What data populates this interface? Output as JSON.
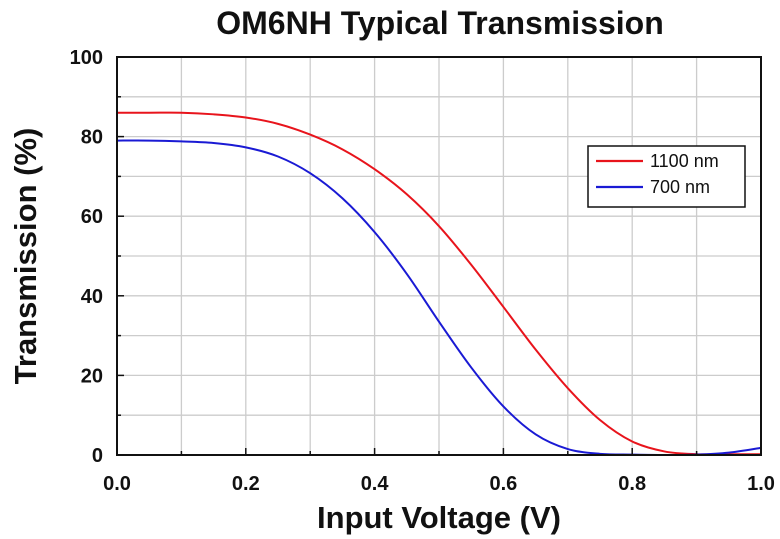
{
  "chart_data": {
    "type": "line",
    "title": "OM6NH Typical Transmission",
    "xlabel": "Input Voltage (V)",
    "ylabel": "Transmission (%)",
    "xlim": [
      0,
      1.0
    ],
    "ylim": [
      0,
      100
    ],
    "xticks": [
      "0.0",
      "0.2",
      "0.4",
      "0.6",
      "0.8",
      "1.0"
    ],
    "xtick_values": [
      0,
      0.2,
      0.4,
      0.6,
      0.8,
      1.0
    ],
    "yticks": [
      "0",
      "20",
      "40",
      "60",
      "80",
      "100"
    ],
    "ytick_values": [
      0,
      20,
      40,
      60,
      80,
      100
    ],
    "grid": true,
    "legend_position": "top-right",
    "series": [
      {
        "name": "1100 nm",
        "color": "#e8141c",
        "x": [
          0,
          0.05,
          0.1,
          0.15,
          0.2,
          0.25,
          0.3,
          0.35,
          0.4,
          0.45,
          0.5,
          0.55,
          0.6,
          0.65,
          0.7,
          0.75,
          0.8,
          0.85,
          0.9,
          0.95,
          1.0
        ],
        "y": [
          86,
          86,
          86,
          85.6,
          84.8,
          83.2,
          80.5,
          76.8,
          71.8,
          65.5,
          57.5,
          47.8,
          37.2,
          26.5,
          16.8,
          8.8,
          3.4,
          0.9,
          0.2,
          0.2,
          0.2
        ]
      },
      {
        "name": "700 nm",
        "color": "#1a1ad4",
        "x": [
          0,
          0.05,
          0.1,
          0.15,
          0.2,
          0.25,
          0.3,
          0.35,
          0.4,
          0.45,
          0.5,
          0.55,
          0.6,
          0.65,
          0.7,
          0.75,
          0.8,
          0.85,
          0.9,
          0.95,
          1.0
        ],
        "y": [
          79,
          79,
          78.8,
          78.4,
          77.3,
          75.0,
          70.8,
          64.5,
          56.0,
          45.5,
          33.5,
          22.0,
          12.2,
          5.2,
          1.5,
          0.3,
          0.1,
          0.0,
          0.1,
          0.6,
          1.8
        ]
      }
    ]
  }
}
